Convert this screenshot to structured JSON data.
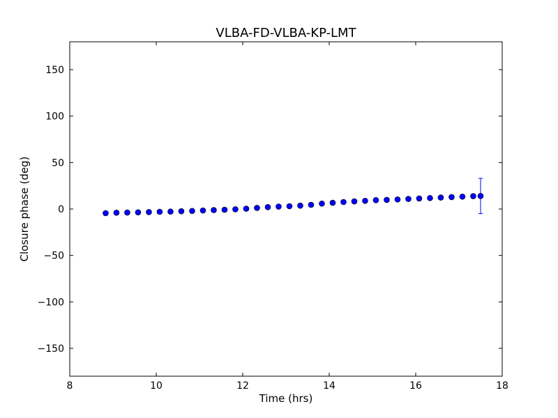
{
  "chart_data": {
    "type": "scatter",
    "title": "VLBA-FD-VLBA-KP-LMT",
    "xlabel": "Time (hrs)",
    "ylabel": "Closure phase (deg)",
    "xlim": [
      8,
      18
    ],
    "ylim": [
      -180,
      180
    ],
    "xticks": [
      8,
      10,
      12,
      14,
      16,
      18
    ],
    "yticks": [
      -150,
      -100,
      -50,
      0,
      50,
      100,
      150
    ],
    "grid": false,
    "marker_color": "#0000ff",
    "errorbar_color": "#0000ff",
    "series": [
      {
        "x": [
          8.83,
          9.08,
          9.33,
          9.58,
          9.83,
          10.08,
          10.33,
          10.58,
          10.83,
          11.08,
          11.33,
          11.58,
          11.83,
          12.08,
          12.33,
          12.58,
          12.83,
          13.08,
          13.33,
          13.58,
          13.83,
          14.08,
          14.33,
          14.58,
          14.83,
          15.08,
          15.33,
          15.58,
          15.83,
          16.08,
          16.33,
          16.58,
          16.83,
          17.08,
          17.33,
          17.5
        ],
        "y": [
          -4.5,
          -4.0,
          -3.8,
          -3.6,
          -3.3,
          -3.0,
          -2.8,
          -2.4,
          -2.1,
          -1.6,
          -1.2,
          -0.8,
          -0.3,
          0.3,
          1.2,
          2.0,
          2.6,
          3.0,
          3.6,
          4.5,
          5.8,
          6.7,
          7.5,
          8.2,
          8.8,
          9.5,
          9.8,
          10.3,
          10.8,
          11.3,
          11.8,
          12.3,
          12.8,
          13.3,
          13.8,
          14.0
        ],
        "yerr": [
          1.5,
          1.5,
          1.5,
          1.5,
          1.5,
          1.5,
          1.5,
          1.5,
          1.5,
          1.5,
          1.5,
          1.5,
          1.5,
          1.5,
          1.5,
          1.5,
          1.5,
          1.5,
          1.5,
          1.5,
          1.5,
          1.5,
          1.5,
          1.5,
          1.5,
          1.5,
          1.5,
          1.5,
          1.5,
          1.5,
          1.5,
          1.5,
          1.5,
          1.5,
          1.5,
          19
        ]
      }
    ]
  }
}
